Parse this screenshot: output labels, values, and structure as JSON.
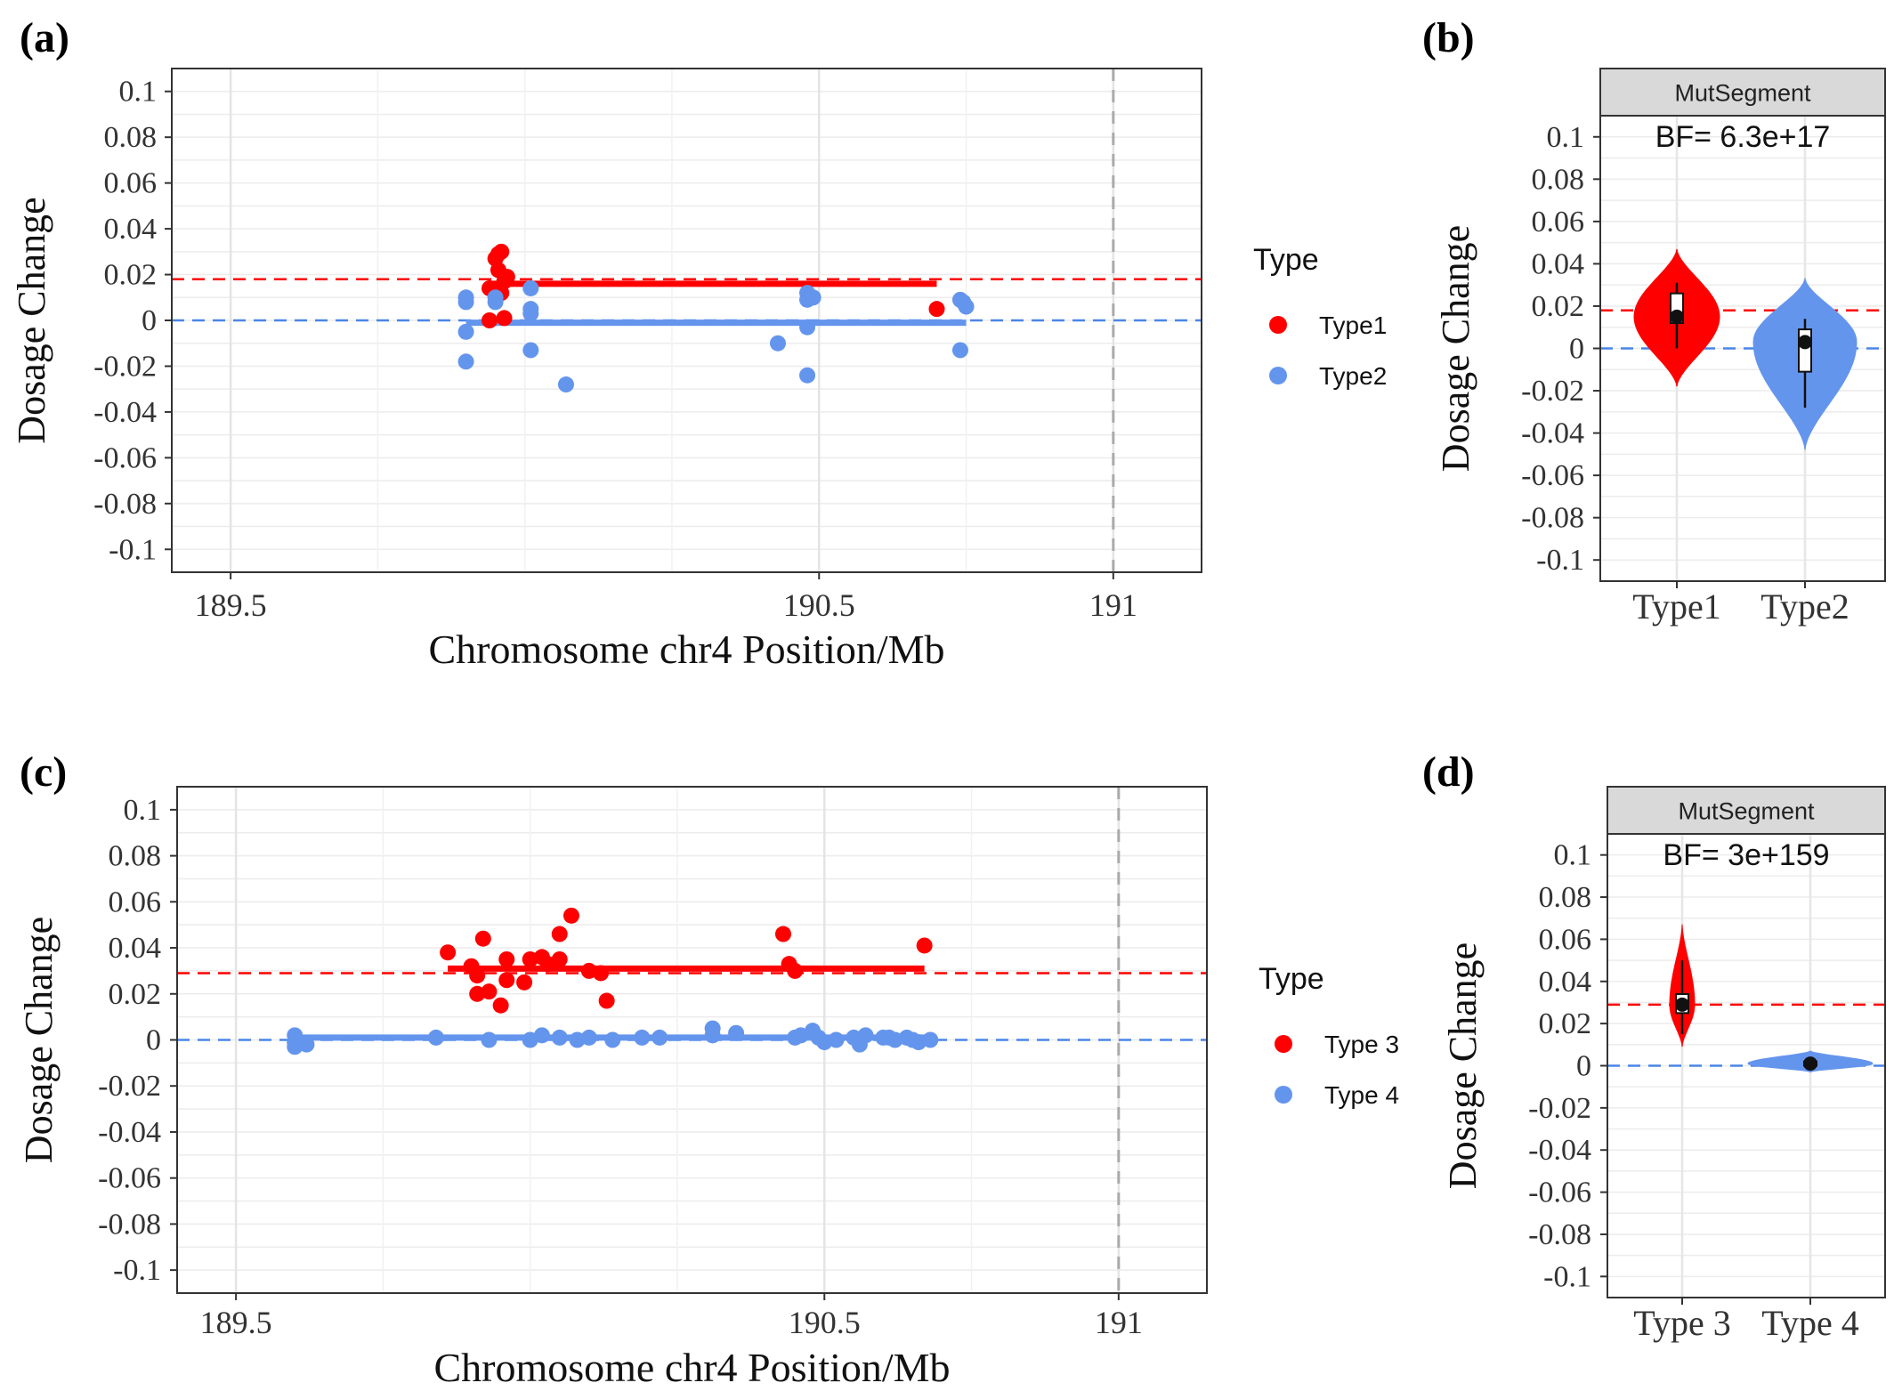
{
  "chart_data": [
    {
      "panel_label": "(a)",
      "type": "scatter",
      "xlabel": "Chromosome chr4 Position/Mb",
      "ylabel": "Dosage Change",
      "xlim": [
        189.4,
        191.15
      ],
      "ylim": [
        -0.11,
        0.11
      ],
      "x_ticks": [
        189.5,
        190.5,
        191
      ],
      "x_tick_labels": [
        "189.5",
        "190.5",
        "191"
      ],
      "y_ticks": [
        0.1,
        0.08,
        0.06,
        0.04,
        0.02,
        0,
        -0.02,
        -0.04,
        -0.06,
        -0.08,
        -0.1
      ],
      "y_tick_labels": [
        "0.1",
        "0.08",
        "0.06",
        "0.04",
        "0.02",
        "0",
        "-0.02",
        "-0.04",
        "-0.06",
        "-0.08",
        "-0.1"
      ],
      "grid": true,
      "legend": {
        "title": "Type",
        "position": "right"
      },
      "ref_lines": [
        {
          "y": 0.018,
          "color": "#ff0000"
        },
        {
          "y": 0,
          "color": "#4a86e8"
        }
      ],
      "vline": 191,
      "series": [
        {
          "name": "Type1",
          "color": "#ff0000",
          "segment": {
            "x": [
              189.94,
              190.7
            ],
            "y": 0.016
          },
          "points": [
            [
              189.94,
              0.014
            ],
            [
              189.94,
              0.0
            ],
            [
              189.95,
              0.027
            ],
            [
              189.955,
              0.029
            ],
            [
              189.96,
              0.03
            ],
            [
              189.955,
              0.022
            ],
            [
              189.96,
              0.012
            ],
            [
              189.965,
              0.017
            ],
            [
              189.97,
              0.019
            ],
            [
              189.965,
              0.001
            ],
            [
              189.95,
              0.013
            ],
            [
              190.7,
              0.005
            ]
          ]
        },
        {
          "name": "Type2",
          "color": "#6495ed",
          "segment": {
            "x": [
              189.9,
              190.75
            ],
            "y": -0.001
          },
          "points": [
            [
              189.9,
              0.01
            ],
            [
              189.9,
              0.008
            ],
            [
              189.9,
              -0.005
            ],
            [
              189.9,
              -0.018
            ],
            [
              189.95,
              0.008
            ],
            [
              189.95,
              0.01
            ],
            [
              190.01,
              0.014
            ],
            [
              190.01,
              0.005
            ],
            [
              190.01,
              0.003
            ],
            [
              190.01,
              -0.013
            ],
            [
              190.07,
              -0.028
            ],
            [
              190.43,
              -0.01
            ],
            [
              190.48,
              0.012
            ],
            [
              190.48,
              0.009
            ],
            [
              190.48,
              -0.003
            ],
            [
              190.48,
              -0.024
            ],
            [
              190.49,
              0.01
            ],
            [
              190.74,
              0.009
            ],
            [
              190.745,
              0.008
            ],
            [
              190.75,
              0.006
            ],
            [
              190.74,
              -0.013
            ]
          ]
        }
      ]
    },
    {
      "panel_label": "(b)",
      "type": "violin",
      "strip_label": "MutSegment",
      "annotation": "BF= 6.3e+17",
      "ylabel": "Dosage Change",
      "categories": [
        "Type1",
        "Type2"
      ],
      "ylim": [
        -0.11,
        0.11
      ],
      "y_ticks": [
        0.1,
        0.08,
        0.06,
        0.04,
        0.02,
        0,
        -0.02,
        -0.04,
        -0.06,
        -0.08,
        -0.1
      ],
      "y_tick_labels": [
        "0.1",
        "0.08",
        "0.06",
        "0.04",
        "0.02",
        "0",
        "-0.02",
        "-0.04",
        "-0.06",
        "-0.08",
        "-0.1"
      ],
      "ref_lines": [
        {
          "y": 0.018,
          "color": "#ff0000"
        },
        {
          "y": 0,
          "color": "#4a86e8"
        }
      ],
      "series": [
        {
          "name": "Type1",
          "color": "#ff0000",
          "violin_range": [
            -0.018,
            0.047
          ],
          "box": {
            "q1": 0.012,
            "q3": 0.026,
            "whisker_low": 0.0,
            "whisker_high": 0.031
          },
          "mean": 0.015
        },
        {
          "name": "Type2",
          "color": "#6495ed",
          "violin_range": [
            -0.048,
            0.033
          ],
          "box": {
            "q1": -0.011,
            "q3": 0.009,
            "whisker_low": -0.028,
            "whisker_high": 0.014
          },
          "mean": 0.003
        }
      ]
    },
    {
      "panel_label": "(c)",
      "type": "scatter",
      "xlabel": "Chromosome chr4 Position/Mb",
      "ylabel": "Dosage Change",
      "xlim": [
        189.4,
        191.15
      ],
      "ylim": [
        -0.11,
        0.11
      ],
      "x_ticks": [
        189.5,
        190.5,
        191
      ],
      "x_tick_labels": [
        "189.5",
        "190.5",
        "191"
      ],
      "y_ticks": [
        0.1,
        0.08,
        0.06,
        0.04,
        0.02,
        0,
        -0.02,
        -0.04,
        -0.06,
        -0.08,
        -0.1
      ],
      "y_tick_labels": [
        "0.1",
        "0.08",
        "0.06",
        "0.04",
        "0.02",
        "0",
        "-0.02",
        "-0.04",
        "-0.06",
        "-0.08",
        "-0.1"
      ],
      "grid": true,
      "legend": {
        "title": "Type",
        "position": "right"
      },
      "ref_lines": [
        {
          "y": 0.029,
          "color": "#ff0000"
        },
        {
          "y": 0,
          "color": "#4a86e8"
        }
      ],
      "vline": 191,
      "series": [
        {
          "name": "Type 3",
          "color": "#ff0000",
          "segment": {
            "x": [
              189.86,
              190.67
            ],
            "y": 0.031
          },
          "points": [
            [
              189.86,
              0.038
            ],
            [
              189.9,
              0.032
            ],
            [
              189.91,
              0.028
            ],
            [
              189.91,
              0.02
            ],
            [
              189.92,
              0.044
            ],
            [
              189.93,
              0.021
            ],
            [
              189.95,
              0.015
            ],
            [
              189.96,
              0.026
            ],
            [
              189.96,
              0.035
            ],
            [
              189.99,
              0.025
            ],
            [
              190.0,
              0.035
            ],
            [
              190.02,
              0.036
            ],
            [
              190.03,
              0.033
            ],
            [
              190.05,
              0.046
            ],
            [
              190.05,
              0.035
            ],
            [
              190.07,
              0.054
            ],
            [
              190.1,
              0.03
            ],
            [
              190.12,
              0.029
            ],
            [
              190.13,
              0.017
            ],
            [
              190.43,
              0.046
            ],
            [
              190.44,
              0.033
            ],
            [
              190.45,
              0.03
            ],
            [
              190.67,
              0.041
            ]
          ]
        },
        {
          "name": "Type 4",
          "color": "#6495ed",
          "segment": {
            "x": [
              189.6,
              190.68
            ],
            "y": 0.001
          },
          "points": [
            [
              189.6,
              0.002
            ],
            [
              189.6,
              -0.001
            ],
            [
              189.6,
              -0.003
            ],
            [
              189.62,
              -0.002
            ],
            [
              189.84,
              0.001
            ],
            [
              189.93,
              0.0
            ],
            [
              190.0,
              0.0
            ],
            [
              190.02,
              0.002
            ],
            [
              190.05,
              0.001
            ],
            [
              190.08,
              0.0
            ],
            [
              190.1,
              0.001
            ],
            [
              190.14,
              0.0
            ],
            [
              190.19,
              0.001
            ],
            [
              190.22,
              0.001
            ],
            [
              190.31,
              0.002
            ],
            [
              190.31,
              0.005
            ],
            [
              190.35,
              0.003
            ],
            [
              190.45,
              0.001
            ],
            [
              190.46,
              0.002
            ],
            [
              190.48,
              0.004
            ],
            [
              190.49,
              0.001
            ],
            [
              190.5,
              -0.001
            ],
            [
              190.52,
              0.0
            ],
            [
              190.55,
              0.001
            ],
            [
              190.56,
              -0.002
            ],
            [
              190.57,
              0.002
            ],
            [
              190.6,
              0.001
            ],
            [
              190.61,
              0.001
            ],
            [
              190.62,
              0.0
            ],
            [
              190.64,
              0.001
            ],
            [
              190.65,
              0.0
            ],
            [
              190.66,
              -0.001
            ],
            [
              190.68,
              0.0
            ]
          ]
        }
      ]
    },
    {
      "panel_label": "(d)",
      "type": "violin",
      "strip_label": "MutSegment",
      "annotation": "BF= 3e+159",
      "ylabel": "Dosage Change",
      "categories": [
        "Type 3",
        "Type 4"
      ],
      "ylim": [
        -0.11,
        0.11
      ],
      "y_ticks": [
        0.1,
        0.08,
        0.06,
        0.04,
        0.02,
        0,
        -0.02,
        -0.04,
        -0.06,
        -0.08,
        -0.1
      ],
      "y_tick_labels": [
        "0.1",
        "0.08",
        "0.06",
        "0.04",
        "0.02",
        "0",
        "-0.02",
        "-0.04",
        "-0.06",
        "-0.08",
        "-0.1"
      ],
      "ref_lines": [
        {
          "y": 0.029,
          "color": "#ff0000"
        },
        {
          "y": 0,
          "color": "#4a86e8"
        }
      ],
      "series": [
        {
          "name": "Type 3",
          "color": "#ff0000",
          "violin_range": [
            0.009,
            0.067
          ],
          "box": {
            "q1": 0.025,
            "q3": 0.034,
            "whisker_low": 0.015,
            "whisker_high": 0.05
          },
          "mean": 0.029
        },
        {
          "name": "Type 4",
          "color": "#6495ed",
          "violin_range": [
            -0.003,
            0.007
          ],
          "box": {
            "q1": 0.0,
            "q3": 0.002,
            "whisker_low": -0.002,
            "whisker_high": 0.004
          },
          "mean": 0.001
        }
      ]
    }
  ]
}
